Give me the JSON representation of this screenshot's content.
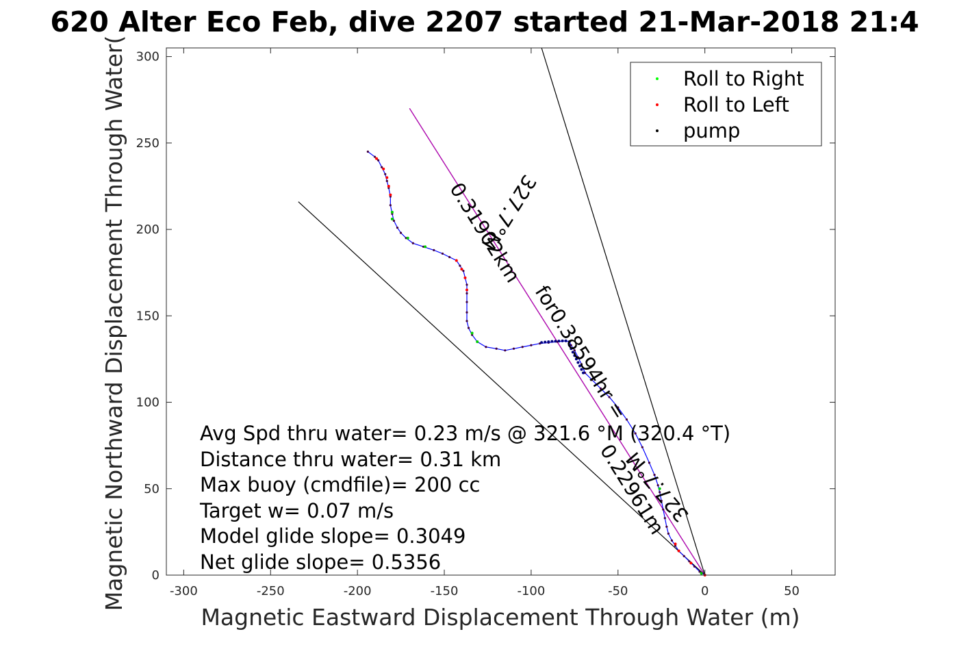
{
  "chart_data": {
    "type": "line",
    "title": "620 Alter Eco Feb, dive 2207 started 21-Mar-2018 21:4",
    "xlabel": "Magnetic Eastward Displacement Through Water (m)",
    "ylabel": "Magnetic Northward Displacement Through Water(",
    "xlim": [
      -310,
      75
    ],
    "ylim": [
      0,
      305
    ],
    "xticks": [
      -300,
      -250,
      -200,
      -150,
      -100,
      -50,
      0,
      50
    ],
    "yticks": [
      0,
      50,
      100,
      150,
      200,
      250,
      300
    ],
    "grid": true,
    "legend": {
      "placement": "top-right",
      "entries": [
        {
          "label": "Roll to Right",
          "color": "#00ff00"
        },
        {
          "label": "Roll to Left",
          "color": "#ff0000"
        },
        {
          "label": "pump",
          "color": "#000000"
        }
      ]
    },
    "annotations": {
      "heading_line_label": "327.7°M",
      "distance_label": "0.31902km",
      "time_label": "for0.38594hr =",
      "short_line_label": "0.22961m",
      "short_heading_label": "327.7°M"
    },
    "info_text": [
      "Avg Spd thru water=  0.23 m/s @ 321.6 °M (320.4 °T)",
      "Distance thru water=  0.31 km",
      "Max buoy (cmdfile)= 200 cc",
      "Target w= 0.07 m/s",
      "Model glide slope= 0.3049",
      "Net glide slope= 0.5356"
    ],
    "series": [
      {
        "name": "track",
        "color": "#0000ff",
        "points": [
          [
            0,
            0
          ],
          [
            -3,
            2
          ],
          [
            -6,
            5
          ],
          [
            -9,
            8
          ],
          [
            -12,
            11
          ],
          [
            -15,
            14
          ],
          [
            -17,
            17
          ],
          [
            -19,
            20
          ],
          [
            -21,
            24
          ],
          [
            -22,
            28
          ],
          [
            -23,
            33
          ],
          [
            -24,
            38
          ],
          [
            -25,
            43
          ],
          [
            -26,
            48
          ],
          [
            -27,
            52
          ],
          [
            -29,
            58
          ],
          [
            -32,
            65
          ],
          [
            -36,
            74
          ],
          [
            -40,
            82
          ],
          [
            -45,
            90
          ],
          [
            -50,
            97
          ],
          [
            -55,
            103
          ],
          [
            -60,
            108
          ],
          [
            -65,
            113
          ],
          [
            -69,
            117
          ],
          [
            -71,
            122
          ],
          [
            -73,
            126
          ],
          [
            -75,
            130
          ],
          [
            -77,
            133
          ],
          [
            -78,
            135
          ],
          [
            -80,
            135.5
          ],
          [
            -85,
            135
          ],
          [
            -90,
            134.5
          ],
          [
            -95,
            134
          ],
          [
            -100,
            133
          ],
          [
            -105,
            132
          ],
          [
            -110,
            131
          ],
          [
            -115,
            130
          ],
          [
            -120,
            131
          ],
          [
            -126,
            132
          ],
          [
            -131,
            135
          ],
          [
            -134,
            139
          ],
          [
            -136,
            143
          ],
          [
            -137,
            147
          ],
          [
            -137,
            152
          ],
          [
            -137,
            158
          ],
          [
            -137,
            163
          ],
          [
            -137,
            168
          ],
          [
            -138,
            172
          ],
          [
            -139,
            176
          ],
          [
            -141,
            179
          ],
          [
            -143,
            182
          ],
          [
            -147,
            184
          ],
          [
            -151,
            186
          ],
          [
            -156,
            188
          ],
          [
            -162,
            190
          ],
          [
            -168,
            192
          ],
          [
            -172,
            195
          ],
          [
            -175,
            198
          ],
          [
            -177,
            201
          ],
          [
            -179,
            205
          ],
          [
            -180,
            209
          ],
          [
            -181,
            214
          ],
          [
            -181,
            219
          ],
          [
            -182,
            224
          ],
          [
            -183,
            228
          ],
          [
            -184,
            232
          ],
          [
            -186,
            236
          ],
          [
            -188,
            240
          ],
          [
            -190,
            242
          ],
          [
            -194,
            245
          ]
        ]
      },
      {
        "name": "pump",
        "color": "#000080",
        "points": [
          [
            -70,
            117
          ],
          [
            -71,
            119
          ],
          [
            -72,
            121
          ],
          [
            -73,
            123
          ],
          [
            -74,
            125
          ],
          [
            -75,
            127
          ],
          [
            -76,
            129
          ],
          [
            -77,
            131
          ],
          [
            -78,
            133
          ],
          [
            -78,
            135
          ],
          [
            -80,
            135.5
          ],
          [
            -82,
            135.5
          ],
          [
            -84,
            135.4
          ],
          [
            -86,
            135.3
          ],
          [
            -88,
            135.2
          ],
          [
            -90,
            135.0
          ],
          [
            -92,
            134.8
          ],
          [
            -94,
            134.6
          ]
        ]
      },
      {
        "name": "roll-right",
        "color": "#00d000",
        "points": [
          [
            -2,
            1
          ],
          [
            -26,
            50
          ],
          [
            -131,
            135
          ],
          [
            -134,
            140
          ],
          [
            -180,
            206
          ],
          [
            -180,
            210
          ],
          [
            -171,
            195
          ],
          [
            -161,
            190
          ]
        ]
      },
      {
        "name": "roll-left",
        "color": "#ff0000",
        "points": [
          [
            0,
            0
          ],
          [
            -8,
            7
          ],
          [
            -15,
            14
          ],
          [
            -17,
            18
          ],
          [
            -137,
            165
          ],
          [
            -138,
            172
          ],
          [
            -140,
            177
          ],
          [
            -143,
            182
          ],
          [
            -181,
            220
          ],
          [
            -182,
            225
          ],
          [
            -183,
            230
          ],
          [
            -185,
            235
          ],
          [
            -189,
            241
          ]
        ]
      }
    ],
    "lines": [
      {
        "name": "heading-line",
        "color": "#000000",
        "from": [
          0,
          0
        ],
        "to": [
          -170,
          270
        ]
      },
      {
        "name": "heading-line-magenta",
        "color": "#c000c0",
        "from": [
          0,
          0
        ],
        "to": [
          -170,
          270
        ]
      },
      {
        "name": "bound-line-left",
        "color": "#000000",
        "from": [
          0,
          0
        ],
        "to": [
          -234,
          216
        ]
      },
      {
        "name": "bound-line-right",
        "color": "#000000",
        "from": [
          0,
          0
        ],
        "to": [
          -94,
          305
        ]
      }
    ]
  }
}
